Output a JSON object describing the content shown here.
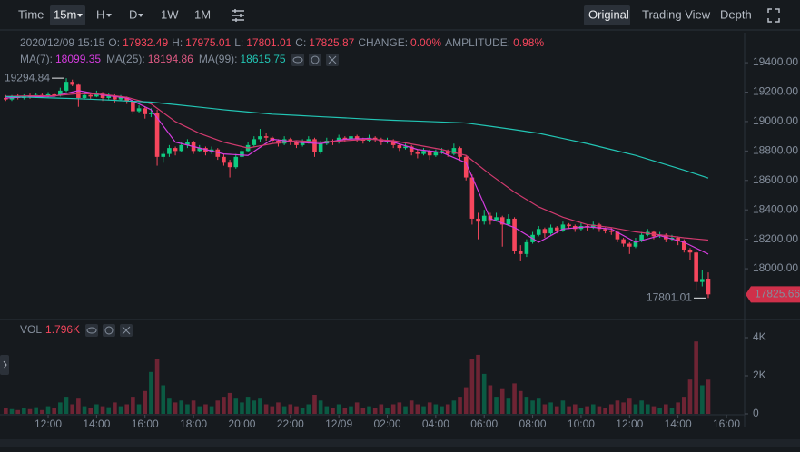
{
  "toolbar": {
    "intervals": [
      "Time",
      "15m",
      "H",
      "D",
      "1W",
      "1M"
    ],
    "views": [
      "Original",
      "Trading View",
      "Depth"
    ]
  },
  "info": {
    "datetime": "2020/12/09 15:15",
    "o": "O:",
    "h": "H:",
    "l": "L:",
    "c": "C:",
    "change_label": "CHANGE:",
    "change": "0.00%",
    "amp_label": "AMPLITUDE:",
    "amplitude": "0.98%"
  },
  "chart_data": {
    "type": "candlestick",
    "up_color": "#0ecb81",
    "down_color": "#f6465d",
    "candles": [
      [
        19160,
        19180,
        19140,
        19150
      ],
      [
        19150,
        19180,
        19140,
        19170
      ],
      [
        19170,
        19185,
        19150,
        19160
      ],
      [
        19160,
        19185,
        19150,
        19175
      ],
      [
        19175,
        19190,
        19155,
        19165
      ],
      [
        19165,
        19195,
        19160,
        19180
      ],
      [
        19180,
        19190,
        19160,
        19170
      ],
      [
        19170,
        19200,
        19165,
        19185
      ],
      [
        19185,
        19195,
        19165,
        19175
      ],
      [
        19175,
        19230,
        19170,
        19210
      ],
      [
        19210,
        19294.84,
        19200,
        19270
      ],
      [
        19270,
        19285,
        19240,
        19250
      ],
      [
        19250,
        19260,
        19100,
        19160
      ],
      [
        19160,
        19200,
        19150,
        19180
      ],
      [
        19180,
        19195,
        19155,
        19170
      ],
      [
        19170,
        19210,
        19165,
        19190
      ],
      [
        19190,
        19200,
        19140,
        19160
      ],
      [
        19160,
        19190,
        19150,
        19175
      ],
      [
        19175,
        19185,
        19130,
        19150
      ],
      [
        19150,
        19180,
        19140,
        19165
      ],
      [
        19165,
        19170,
        19120,
        19140
      ],
      [
        19140,
        19150,
        19050,
        19070
      ],
      [
        19070,
        19110,
        19060,
        19090
      ],
      [
        19090,
        19100,
        19020,
        19050
      ],
      [
        19050,
        19090,
        19030,
        19060
      ],
      [
        19060,
        19080,
        18700,
        18760
      ],
      [
        18760,
        18800,
        18720,
        18780
      ],
      [
        18780,
        18840,
        18760,
        18820
      ],
      [
        18820,
        18830,
        18770,
        18800
      ],
      [
        18800,
        18860,
        18790,
        18840
      ],
      [
        18840,
        18880,
        18820,
        18860
      ],
      [
        18860,
        18870,
        18780,
        18800
      ],
      [
        18800,
        18840,
        18790,
        18820
      ],
      [
        18820,
        18830,
        18770,
        18790
      ],
      [
        18790,
        18830,
        18780,
        18810
      ],
      [
        18810,
        18820,
        18740,
        18760
      ],
      [
        18760,
        18780,
        18700,
        18720
      ],
      [
        18720,
        18740,
        18620,
        18690
      ],
      [
        18690,
        18780,
        18680,
        18760
      ],
      [
        18760,
        18820,
        18750,
        18800
      ],
      [
        18800,
        18860,
        18790,
        18840
      ],
      [
        18840,
        18900,
        18830,
        18880
      ],
      [
        18880,
        18950,
        18860,
        18900
      ],
      [
        18900,
        18920,
        18870,
        18890
      ],
      [
        18890,
        18900,
        18850,
        18870
      ],
      [
        18870,
        18880,
        18830,
        18850
      ],
      [
        18850,
        18900,
        18840,
        18880
      ],
      [
        18880,
        18890,
        18840,
        18860
      ],
      [
        18860,
        18870,
        18820,
        18840
      ],
      [
        18840,
        18880,
        18830,
        18860
      ],
      [
        18860,
        18900,
        18850,
        18880
      ],
      [
        18880,
        18890,
        18760,
        18790
      ],
      [
        18790,
        18870,
        18780,
        18850
      ],
      [
        18850,
        18890,
        18840,
        18870
      ],
      [
        18870,
        18880,
        18840,
        18860
      ],
      [
        18860,
        18910,
        18850,
        18890
      ],
      [
        18890,
        18900,
        18860,
        18880
      ],
      [
        18880,
        18920,
        18870,
        18900
      ],
      [
        18900,
        18910,
        18860,
        18880
      ],
      [
        18880,
        18890,
        18850,
        18870
      ],
      [
        18870,
        18910,
        18860,
        18890
      ],
      [
        18890,
        18900,
        18860,
        18880
      ],
      [
        18880,
        18890,
        18840,
        18860
      ],
      [
        18860,
        18890,
        18850,
        18870
      ],
      [
        18870,
        18880,
        18820,
        18840
      ],
      [
        18840,
        18850,
        18800,
        18820
      ],
      [
        18820,
        18850,
        18810,
        18830
      ],
      [
        18830,
        18840,
        18770,
        18790
      ],
      [
        18790,
        18810,
        18750,
        18780
      ],
      [
        18780,
        18820,
        18770,
        18800
      ],
      [
        18800,
        18810,
        18740,
        18770
      ],
      [
        18770,
        18810,
        18760,
        18790
      ],
      [
        18790,
        18820,
        18780,
        18800
      ],
      [
        18800,
        18810,
        18760,
        18780
      ],
      [
        18780,
        18850,
        18770,
        18820
      ],
      [
        18820,
        18830,
        18740,
        18760
      ],
      [
        18760,
        18770,
        18600,
        18620
      ],
      [
        18620,
        18640,
        18300,
        18340
      ],
      [
        18340,
        18380,
        18200,
        18320
      ],
      [
        18320,
        18400,
        18300,
        18360
      ],
      [
        18360,
        18380,
        18300,
        18330
      ],
      [
        18330,
        18380,
        18320,
        18350
      ],
      [
        18350,
        18360,
        18150,
        18300
      ],
      [
        18300,
        18370,
        18290,
        18340
      ],
      [
        18340,
        18350,
        18100,
        18120
      ],
      [
        18120,
        18160,
        18050,
        18100
      ],
      [
        18100,
        18200,
        18080,
        18180
      ],
      [
        18180,
        18250,
        18170,
        18230
      ],
      [
        18230,
        18290,
        18220,
        18270
      ],
      [
        18270,
        18280,
        18210,
        18240
      ],
      [
        18240,
        18300,
        18230,
        18280
      ],
      [
        18280,
        18290,
        18240,
        18260
      ],
      [
        18260,
        18320,
        18250,
        18300
      ],
      [
        18300,
        18310,
        18270,
        18290
      ],
      [
        18290,
        18300,
        18250,
        18270
      ],
      [
        18270,
        18310,
        18260,
        18290
      ],
      [
        18290,
        18300,
        18260,
        18280
      ],
      [
        18280,
        18320,
        18270,
        18300
      ],
      [
        18300,
        18310,
        18250,
        18270
      ],
      [
        18270,
        18280,
        18240,
        18260
      ],
      [
        18260,
        18280,
        18230,
        18250
      ],
      [
        18250,
        18260,
        18180,
        18200
      ],
      [
        18200,
        18210,
        18150,
        18170
      ],
      [
        18170,
        18180,
        18100,
        18150
      ],
      [
        18150,
        18210,
        18140,
        18190
      ],
      [
        18190,
        18250,
        18180,
        18230
      ],
      [
        18230,
        18270,
        18220,
        18250
      ],
      [
        18250,
        18260,
        18200,
        18220
      ],
      [
        18220,
        18250,
        18210,
        18230
      ],
      [
        18230,
        18240,
        18180,
        18200
      ],
      [
        18200,
        18230,
        18190,
        18210
      ],
      [
        18210,
        18220,
        18160,
        18190
      ],
      [
        18190,
        18200,
        18110,
        18130
      ],
      [
        18130,
        18140,
        18060,
        18110
      ],
      [
        18110,
        18120,
        17850,
        17910
      ],
      [
        17910,
        17990,
        17880,
        17930
      ],
      [
        17932.49,
        17975.01,
        17801.01,
        17825.87
      ]
    ],
    "volumes": [
      300,
      250,
      200,
      300,
      250,
      350,
      200,
      400,
      300,
      600,
      900,
      500,
      800,
      400,
      300,
      500,
      400,
      350,
      600,
      400,
      500,
      900,
      500,
      1200,
      2200,
      2900,
      1500,
      800,
      600,
      700,
      500,
      700,
      400,
      500,
      400,
      700,
      900,
      1100,
      800,
      600,
      900,
      700,
      800,
      500,
      400,
      600,
      400,
      500,
      400,
      300,
      500,
      1000,
      700,
      400,
      300,
      500,
      300,
      400,
      600,
      300,
      400,
      300,
      500,
      300,
      500,
      600,
      400,
      700,
      500,
      400,
      600,
      500,
      400,
      500,
      700,
      900,
      1400,
      2900,
      3100,
      2100,
      1500,
      900,
      1300,
      800,
      1600,
      1200,
      900,
      700,
      800,
      500,
      600,
      400,
      700,
      400,
      500,
      300,
      400,
      500,
      400,
      300,
      500,
      700,
      600,
      800,
      500,
      700,
      500,
      400,
      300,
      500,
      300,
      600,
      900,
      1800,
      3800,
      1500,
      1796
    ],
    "xlim": [
      -0.95,
      122
    ],
    "xticks": [
      {
        "value": 7,
        "label": "12:00"
      },
      {
        "value": 15,
        "label": "14:00"
      },
      {
        "value": 23,
        "label": "16:00"
      },
      {
        "value": 31,
        "label": "18:00"
      },
      {
        "value": 39,
        "label": "20:00"
      },
      {
        "value": 47,
        "label": "22:00"
      },
      {
        "value": 55,
        "label": "12/09"
      },
      {
        "value": 63,
        "label": "02:00"
      },
      {
        "value": 71,
        "label": "04:00"
      },
      {
        "value": 79,
        "label": "06:00"
      },
      {
        "value": 87,
        "label": "08:00"
      },
      {
        "value": 95,
        "label": "10:00"
      },
      {
        "value": 103,
        "label": "12:00"
      },
      {
        "value": 111,
        "label": "14:00"
      },
      {
        "value": 119,
        "label": "16:00"
      }
    ],
    "ylim": [
      17655,
      19604
    ],
    "yticks": [
      {
        "value": 18000,
        "label": "18000.00"
      },
      {
        "value": 18200,
        "label": "18200.00"
      },
      {
        "value": 18400,
        "label": "18400.00"
      },
      {
        "value": 18600,
        "label": "18600.00"
      },
      {
        "value": 18800,
        "label": "18800.00"
      },
      {
        "value": 19000,
        "label": "19000.00"
      },
      {
        "value": 19200,
        "label": "19200.00"
      },
      {
        "value": 19400,
        "label": "19400.00"
      }
    ],
    "ma_x": [
      0,
      4,
      8,
      12,
      16,
      20,
      24,
      28,
      32,
      36,
      40,
      44,
      48,
      52,
      56,
      60,
      64,
      68,
      72,
      76,
      80,
      84,
      88,
      92,
      96,
      100,
      104,
      108,
      112,
      116
    ],
    "ma": [
      {
        "name": "MA(7):",
        "color": "#d63ce0",
        "values": [
          19160,
          19168,
          19172,
          19210,
          19180,
          19160,
          19080,
          18860,
          18820,
          18780,
          18770,
          18880,
          18860,
          18850,
          18880,
          18885,
          18860,
          18810,
          18790,
          18720,
          18340,
          18280,
          18180,
          18270,
          18285,
          18270,
          18180,
          18225,
          18180,
          18099.35
        ]
      },
      {
        "name": "MA(25):",
        "color": "#d03a6e",
        "values": [
          19170,
          19175,
          19175,
          19190,
          19185,
          19165,
          19120,
          19000,
          18920,
          18860,
          18820,
          18850,
          18870,
          18860,
          18870,
          18880,
          18870,
          18840,
          18810,
          18770,
          18640,
          18520,
          18420,
          18350,
          18300,
          18280,
          18250,
          18230,
          18210,
          18194.86
        ]
      },
      {
        "name": "MA(99):",
        "color": "#22c5b4",
        "values": [
          19170,
          19165,
          19160,
          19155,
          19148,
          19140,
          19132,
          19115,
          19098,
          19080,
          19065,
          19050,
          19042,
          19033,
          19025,
          19016,
          19009,
          19003,
          18997,
          18990,
          18968,
          18945,
          18920,
          18885,
          18850,
          18810,
          18770,
          18720,
          18670,
          18615.75
        ]
      }
    ],
    "last_price": 17825.66,
    "volume": {
      "name": "VOL",
      "readout": "1.796K",
      "up_color": "#0b5a43",
      "down_color": "#6e2434",
      "ylim": [
        0,
        4762
      ],
      "yticks": [
        0,
        {
          "value": 2000,
          "label": "2K"
        },
        {
          "value": 4000,
          "label": "4K"
        }
      ]
    }
  }
}
